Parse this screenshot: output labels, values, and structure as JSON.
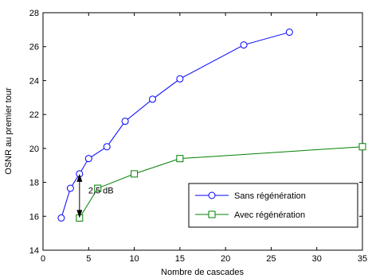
{
  "chart_data": {
    "type": "line",
    "xlabel": "Nombre de cascades",
    "ylabel": "OSNR au premier tour",
    "xlim": [
      0,
      35
    ],
    "ylim": [
      14,
      28
    ],
    "xticks": [
      0,
      5,
      10,
      15,
      20,
      25,
      30,
      35
    ],
    "yticks": [
      14,
      16,
      18,
      20,
      22,
      24,
      26,
      28
    ],
    "grid": false,
    "legend_position": "bottom-right",
    "series": [
      {
        "name": "Sans régénération",
        "color": "#0000ff",
        "marker": "circle",
        "x": [
          2,
          3,
          4,
          5,
          7,
          9,
          12,
          15,
          22,
          27
        ],
        "y": [
          15.9,
          17.65,
          18.5,
          19.4,
          20.1,
          21.6,
          22.9,
          24.1,
          26.1,
          26.85
        ]
      },
      {
        "name": "Avec régénération",
        "color": "#008000",
        "marker": "square",
        "x": [
          4,
          6,
          10,
          15,
          35
        ],
        "y": [
          15.9,
          17.65,
          18.5,
          19.4,
          20.1
        ]
      }
    ],
    "annotation": {
      "text": "2,5 dB",
      "x": 4,
      "y_from": 18.5,
      "y_to": 15.9
    }
  }
}
